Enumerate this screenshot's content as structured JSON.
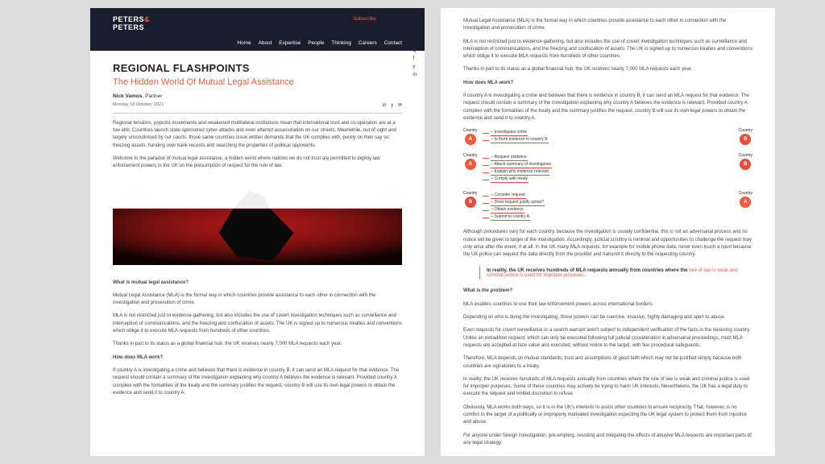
{
  "brand": {
    "line1": "PETERS",
    "amp": "&",
    "line2": "PETERS"
  },
  "subscribe": "Subscribe",
  "nav": [
    "Home",
    "About",
    "Expertise",
    "People",
    "Thinking",
    "Careers",
    "Contact"
  ],
  "side_icons": [
    "Q",
    "f",
    "y",
    "in"
  ],
  "kicker": "REGIONAL FLASHPOINTS",
  "title": "The Hidden World Of Mutual Legal Assistance",
  "author": "Nick Vamos",
  "role": "Partner",
  "date": "Monday 18 October, 2021",
  "share_icons": [
    "in",
    "y",
    "✉"
  ],
  "intro1": "Regional tensions, populist movements and weakened multilateral institutions mean that international trust and co-operation are at a low ebb.  Countries launch state-sponsored cyber-attacks and even attempt assassination on our streets.  Meanwhile, out of sight and largely unscrutinised by our courts, those same countries issue written demands that the UK complies with, purely on their say so: freezing assets, handing over bank records and searching the properties of political opponents.",
  "intro2": "Welcome to the paradox of mutual legal assistance, a hidden world where nations we do not trust are permitted to deploy law enforcement powers in the UK on the presumption of respect for the rule of law.",
  "h_what": "What is mutual legal assistance?",
  "p_what1": "Mutual Legal Assistance (MLA) is the formal way in which countries provide assistance to each other in connection with the investigation and prosecution of crime.",
  "p_what2": "MLA is not restricted just to evidence-gathering, but also includes the use of covert investigation techniques such as surveillance and interception of communications, and the freezing and confiscation of assets.  The UK is signed up to numerous treaties and conventions which oblige it to execute MLA requests from hundreds of other countries.",
  "p_what3": "Thanks in part to its status as a global financial hub, the UK receives nearly 7,000 MLA requests each year.",
  "h_how": "How does MLA work?",
  "p_how1": "If country A is investigating a crime and believes that there is evidence in country B, it can send an MLA request for that evidence. The request should contain a summary of the investigation explaining why country A believes the evidence is relevant.  Provided country A complies with the formalities of the treaty and the summary justifies the request, country B will use its own legal powers to obtain the evidence and send it to country A.",
  "diagram": {
    "country_label": "Country",
    "node_colors": {
      "A": "#f15a3a",
      "B": "#e74c3c"
    },
    "rows": [
      {
        "from": "A",
        "to": "B",
        "lines": [
          "– Investigates crime",
          "– Is there evidence in country B"
        ]
      },
      {
        "from": "A",
        "to": "B",
        "lines": [
          "– Request evidence",
          "– Attach summary of investigation",
          "– Explain why evidence relevant",
          "– Comply with treaty"
        ]
      },
      {
        "from": "B",
        "to": "A",
        "lines": [
          "– Consider request",
          "– Does request justify action?",
          "– Obtain evidence",
          "– Submit to country A"
        ]
      }
    ]
  },
  "p_after_diag": "Although procedures vary for each country, because the investigation is usually confidential, this is not an adversarial process and no notice will be given to target of the investigation.  Accordingly, judicial scrutiny is minimal and opportunities to challenge the request may only arise after the event, if at all.  In the UK many MLA requests, for example for mobile phone data, never even touch a court because the UK police can request the data directly from the provider and transmit it directly to the requesting country.",
  "pull": {
    "black": "In reality, the UK receives hundreds of MLA requests annually from countries where the ",
    "red": "rule of law is weak and criminal justice is used for improper purposes."
  },
  "h_problem": "What is the problem?",
  "p_prob1": "MLA enables countries to use their law enforcement powers across international borders.",
  "p_prob2": "Depending on who is doing the investigating, those powers can be coercive, invasive, highly damaging and open to abuse.",
  "p_prob3": "Even requests for covert surveillance or a search warrant aren't subject to independent verification of the facts in the receiving country.  Unlike an extradition request, which can only be executed following full judicial consideration in adversarial proceedings, most MLA requests are accepted at face value and executed, without notice to the target, with few procedural safeguards.",
  "p_prob4": "Therefore, MLA depends on mutual standards, trust and assumptions of good faith which may not be justified simply because both countries are signatories to a treaty.",
  "p_prob5": "In reality, the UK receives hundreds of MLA requests annually from countries where the rule of law is weak and criminal justice is used for improper purposes.  Some of these countries may actively be trying to harm UK interests.  Nevertheless, the UK has a legal duty to execute the request and limited discretion to refuse.",
  "p_prob6": "Obviously, MLA works both ways, so it is in the UK's interests to assist other countries to ensure reciprocity.  That, however, is no comfort to the target of a politically or improperly motivated investigation expecting the UK legal system to protect them from injustice and abuse.",
  "p_prob7": "For anyone under foreign investigation, pre-empting, resisting and mitigating the effects of abusive MLA requests are important parts of any legal strategy.",
  "hero": {
    "bg": "#ffffff",
    "water": "#8d1111",
    "dark": "#0a0a0a",
    "ice": "#efefef",
    "line": "#c22"
  }
}
